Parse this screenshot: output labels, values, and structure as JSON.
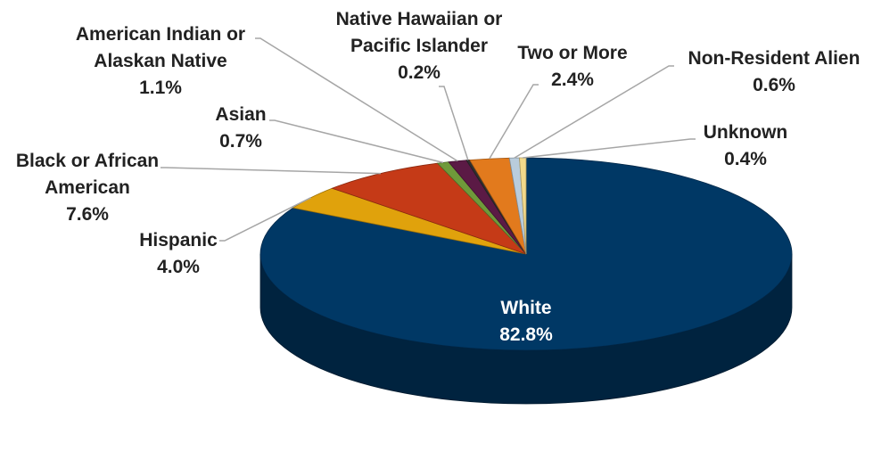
{
  "chart_data": {
    "type": "pie",
    "title": "",
    "slices": [
      {
        "name": "White",
        "label_lines": [
          "White"
        ],
        "value": 82.8,
        "value_label": "82.8%",
        "color": "#003865"
      },
      {
        "name": "Hispanic",
        "label_lines": [
          "Hispanic"
        ],
        "value": 4.0,
        "value_label": "4.0%",
        "color": "#e0a20c"
      },
      {
        "name": "Black or African American",
        "label_lines": [
          "Black or African",
          "American"
        ],
        "value": 7.6,
        "value_label": "7.6%",
        "color": "#c53a17"
      },
      {
        "name": "Asian",
        "label_lines": [
          "Asian"
        ],
        "value": 0.7,
        "value_label": "0.7%",
        "color": "#6f9a3a"
      },
      {
        "name": "American Indian or Alaskan Native",
        "label_lines": [
          "American Indian or",
          "Alaskan Native"
        ],
        "value": 1.1,
        "value_label": "1.1%",
        "color": "#5b1a45"
      },
      {
        "name": "Native Hawaiian or Pacific Islander",
        "label_lines": [
          "Native Hawaiian or",
          "Pacific Islander"
        ],
        "value": 0.2,
        "value_label": "0.2%",
        "color": "#2f2f2f"
      },
      {
        "name": "Two or More",
        "label_lines": [
          "Two or More"
        ],
        "value": 2.4,
        "value_label": "2.4%",
        "color": "#e27a1d"
      },
      {
        "name": "Non-Resident Alien",
        "label_lines": [
          "Non-Resident Alien"
        ],
        "value": 0.6,
        "value_label": "0.6%",
        "color": "#b9ccdc"
      },
      {
        "name": "Unknown",
        "label_lines": [
          "Unknown"
        ],
        "value": 0.4,
        "value_label": "0.4%",
        "color": "#f2d98a"
      }
    ],
    "style": "3d-pie"
  }
}
